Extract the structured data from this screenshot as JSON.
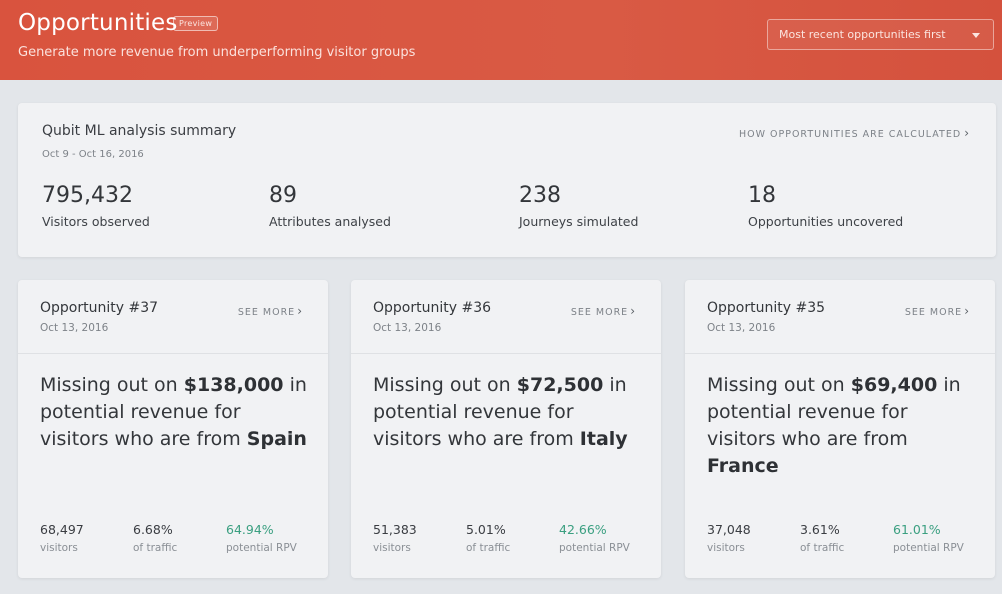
{
  "header": {
    "title": "Opportunities",
    "badge": "Preview",
    "subtitle": "Generate more revenue from underperforming visitor groups",
    "sort_selected": "Most recent opportunities first"
  },
  "summary": {
    "title": "Qubit ML analysis summary",
    "date_range": "Oct 9 - Oct 16, 2016",
    "link": "HOW OPPORTUNITIES ARE CALCULATED",
    "stats": [
      {
        "value": "795,432",
        "label": "Visitors observed"
      },
      {
        "value": "89",
        "label": "Attributes analysed"
      },
      {
        "value": "238",
        "label": "Journeys simulated"
      },
      {
        "value": "18",
        "label": "Opportunities uncovered"
      }
    ]
  },
  "cards": [
    {
      "title": "Opportunity #37",
      "date": "Oct 13, 2016",
      "see_more": "SEE MORE",
      "text_a": "Missing out on ",
      "amount": "$138,000",
      "text_b": " in potential revenue for visitors who are from ",
      "country": "Spain",
      "visitors": "68,497",
      "visitors_label": "visitors",
      "traffic": "6.68%",
      "traffic_label": "of traffic",
      "rpv": "64.94%",
      "rpv_label": "potential RPV"
    },
    {
      "title": "Opportunity #36",
      "date": "Oct 13, 2016",
      "see_more": "SEE MORE",
      "text_a": "Missing out on ",
      "amount": "$72,500",
      "text_b": " in potential revenue for visitors who are from ",
      "country": "Italy",
      "visitors": "51,383",
      "visitors_label": "visitors",
      "traffic": "5.01%",
      "traffic_label": "of traffic",
      "rpv": "42.66%",
      "rpv_label": "potential RPV"
    },
    {
      "title": "Opportunity #35",
      "date": "Oct 13, 2016",
      "see_more": "SEE MORE",
      "text_a": "Missing out on ",
      "amount": "$69,400",
      "text_b": " in potential revenue for visitors who are from ",
      "country": "France",
      "visitors": "37,048",
      "visitors_label": "visitors",
      "traffic": "3.61%",
      "traffic_label": "of traffic",
      "rpv": "61.01%",
      "rpv_label": "potential RPV"
    }
  ],
  "colors": {
    "header_bg": "#d9533e",
    "page_bg": "#e3e6ea",
    "card_bg": "#f1f2f4",
    "positive_green": "#3a9f80"
  },
  "icons": {
    "link_chevron": "chevron-right-icon",
    "dropdown_caret": "caret-down-icon"
  }
}
